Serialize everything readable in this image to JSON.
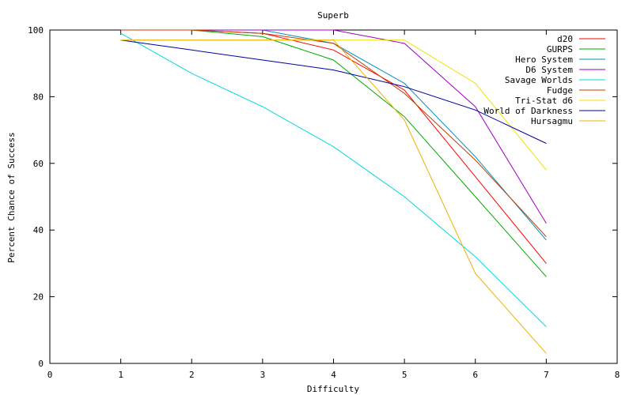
{
  "chart_data": {
    "type": "line",
    "title": "Superb",
    "xlabel": "Difficulty",
    "ylabel": "Percent Chance of Success",
    "xlim": [
      0,
      8
    ],
    "ylim": [
      0,
      100
    ],
    "x_ticks": [
      0,
      1,
      2,
      3,
      4,
      5,
      6,
      7,
      8
    ],
    "y_ticks": [
      0,
      20,
      40,
      60,
      80,
      100
    ],
    "x_tick_labels": [
      "0",
      "1",
      "2",
      "3",
      "4",
      "5",
      "6",
      "7",
      "8"
    ],
    "y_tick_labels": [
      "0",
      "20",
      "40",
      "60",
      "80",
      "100"
    ],
    "grid": false,
    "legend_position": "top-right",
    "series": [
      {
        "name": "d20",
        "color": "#ff0000",
        "x": [
          1,
          2,
          3,
          4,
          5,
          6,
          7
        ],
        "y": [
          100,
          100,
          99,
          94,
          82,
          56,
          30
        ]
      },
      {
        "name": "GURPS",
        "color": "#00aa00",
        "x": [
          1,
          2,
          3,
          4,
          5,
          6,
          7
        ],
        "y": [
          100,
          100,
          98,
          91,
          74,
          50,
          26
        ]
      },
      {
        "name": "Hero System",
        "color": "#0090c0",
        "x": [
          1,
          2,
          3,
          4,
          5,
          6,
          7
        ],
        "y": [
          100,
          100,
          100,
          96,
          84,
          62,
          37
        ]
      },
      {
        "name": "D6 System",
        "color": "#a000c0",
        "x": [
          1,
          2,
          3,
          4,
          5,
          6,
          7
        ],
        "y": [
          100,
          100,
          100,
          100,
          96,
          77,
          42
        ]
      },
      {
        "name": "Savage Worlds",
        "color": "#00d8e0",
        "x": [
          1,
          2,
          3,
          4,
          5,
          6,
          7
        ],
        "y": [
          99,
          87,
          77,
          65,
          50,
          32,
          11
        ]
      },
      {
        "name": "Fudge",
        "color": "#c04000",
        "x": [
          1,
          2,
          3,
          4,
          5,
          6,
          7
        ],
        "y": [
          100,
          100,
          99,
          96,
          81,
          61,
          38
        ]
      },
      {
        "name": "Tri-Stat d6",
        "color": "#f0e000",
        "x": [
          1,
          2,
          3,
          4,
          5,
          6,
          7
        ],
        "y": [
          97,
          97,
          97,
          97,
          97,
          84,
          58
        ]
      },
      {
        "name": "World of Darkness",
        "color": "#0000a0",
        "x": [
          1,
          2,
          3,
          4,
          5,
          6,
          7
        ],
        "y": [
          97,
          94,
          91,
          88,
          83,
          76,
          66
        ]
      },
      {
        "name": "Hursagmu",
        "color": "#f0b000",
        "x": [
          1,
          2,
          3,
          4,
          5,
          6,
          7
        ],
        "y": [
          97,
          97,
          97,
          97,
          73,
          27,
          3
        ]
      }
    ]
  }
}
